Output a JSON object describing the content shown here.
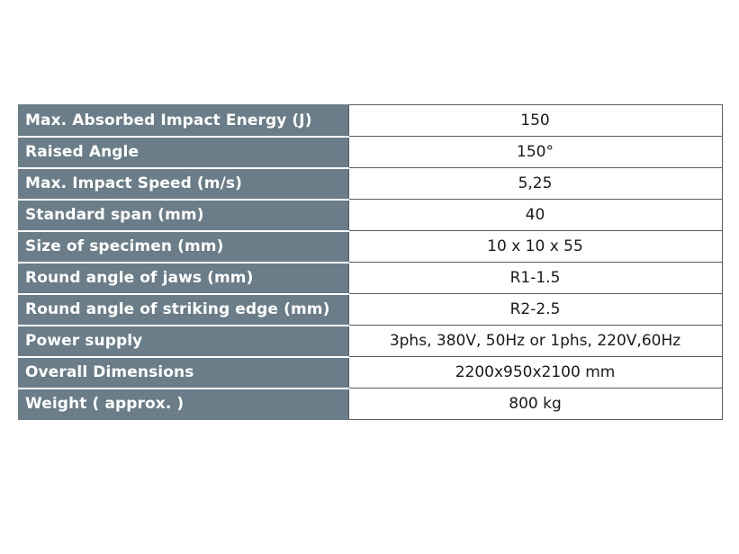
{
  "specs": {
    "rows": [
      {
        "label": "Max. Absorbed Impact Energy (J)",
        "value": "150"
      },
      {
        "label": "Raised Angle",
        "value": "150°"
      },
      {
        "label": "Max. Impact Speed (m/s)",
        "value": "5,25"
      },
      {
        "label": "Standard span (mm)",
        "value": "40"
      },
      {
        "label": "Size of specimen (mm)",
        "value": "10 x 10 x 55"
      },
      {
        "label": "Round angle of jaws (mm)",
        "value": "R1-1.5"
      },
      {
        "label": "Round angle of striking edge (mm)",
        "value": "R2-2.5"
      },
      {
        "label": "Power supply",
        "value": "3phs, 380V, 50Hz or 1phs, 220V,60Hz"
      },
      {
        "label": "Overall Dimensions",
        "value": "2200x950x2100 mm"
      },
      {
        "label": "Weight ( approx. )",
        "value": "800 kg"
      }
    ]
  },
  "colors": {
    "label_background": "#6a7d88",
    "label_text": "#ffffff",
    "value_text": "#1a1a1a",
    "border": "#555b60"
  }
}
